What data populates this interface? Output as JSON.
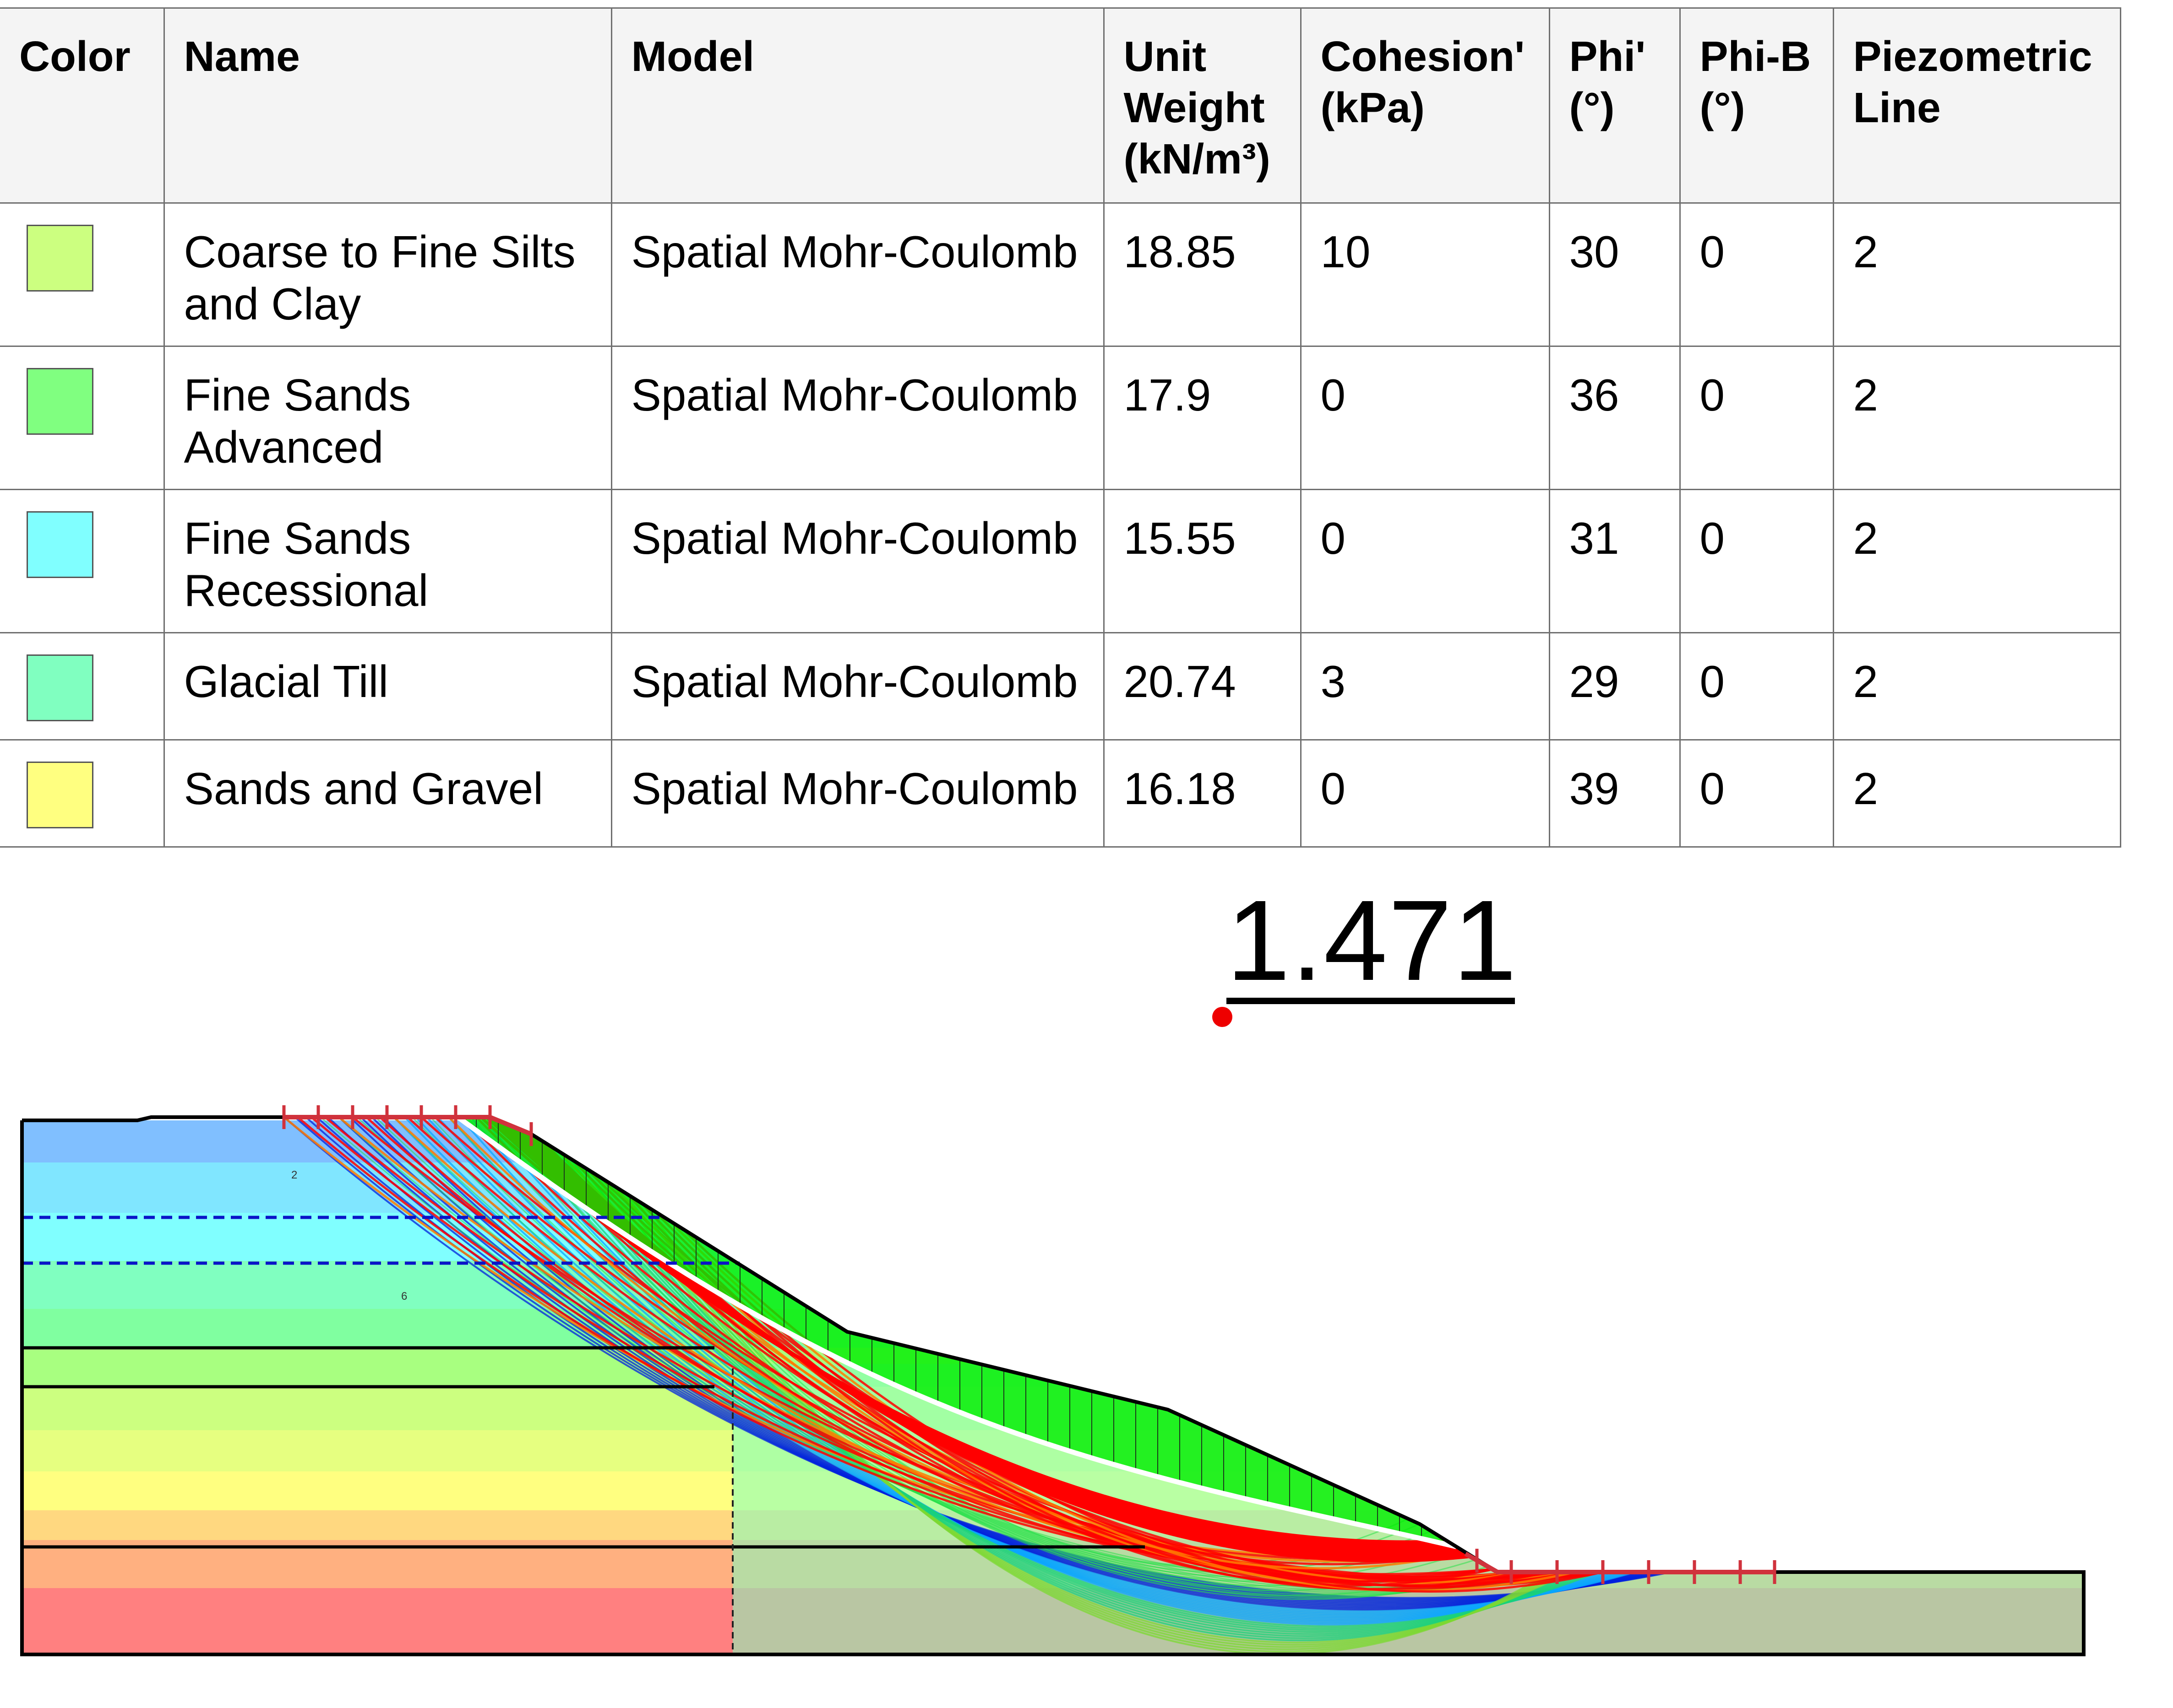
{
  "table": {
    "headers": [
      "Color",
      "Name",
      "Model",
      "Unit Weight (kN/m³)",
      "Cohesion' (kPa)",
      "Phi' (°)",
      "Phi-B (°)",
      "Piezometric Line"
    ],
    "rows": [
      {
        "color": "#ccff80",
        "name": "Coarse to Fine Silts and Clay",
        "model": "Spatial Mohr-Coulomb",
        "unit_weight": "18.85",
        "cohesion": "10",
        "phi": "30",
        "phi_b": "0",
        "piezometric_line": "2"
      },
      {
        "color": "#80ff80",
        "name": "Fine Sands Advanced",
        "model": "Spatial Mohr-Coulomb",
        "unit_weight": "17.9",
        "cohesion": "0",
        "phi": "36",
        "phi_b": "0",
        "piezometric_line": "2"
      },
      {
        "color": "#80ffff",
        "name": "Fine Sands Recessional",
        "model": "Spatial Mohr-Coulomb",
        "unit_weight": "15.55",
        "cohesion": "0",
        "phi": "31",
        "phi_b": "0",
        "piezometric_line": "2"
      },
      {
        "color": "#80ffc0",
        "name": "Glacial Till",
        "model": "Spatial Mohr-Coulomb",
        "unit_weight": "20.74",
        "cohesion": "3",
        "phi": "29",
        "phi_b": "0",
        "piezometric_line": "2"
      },
      {
        "color": "#ffff80",
        "name": "Sands and Gravel",
        "model": "Spatial Mohr-Coulomb",
        "unit_weight": "16.18",
        "cohesion": "0",
        "phi": "39",
        "phi_b": "0",
        "piezometric_line": "2"
      }
    ]
  },
  "factor_of_safety": "1.471",
  "section": {
    "piezometric_label": "2",
    "point_label": "6",
    "colors": {
      "critical_slip": "#ffffff",
      "high_fs_slips": "#0022dd",
      "low_fs_slips": "#ff0000",
      "water_table": "#0a14c8",
      "entry_exit_markers": "#d0323c"
    },
    "strata_colors": [
      "#80bfff",
      "#80e6ff",
      "#80ffff",
      "#80ffc0",
      "#80ffa0",
      "#a8ff80",
      "#ccff80",
      "#e6ff80",
      "#ffff80",
      "#ffd880",
      "#ffb080",
      "#ff8080"
    ]
  }
}
